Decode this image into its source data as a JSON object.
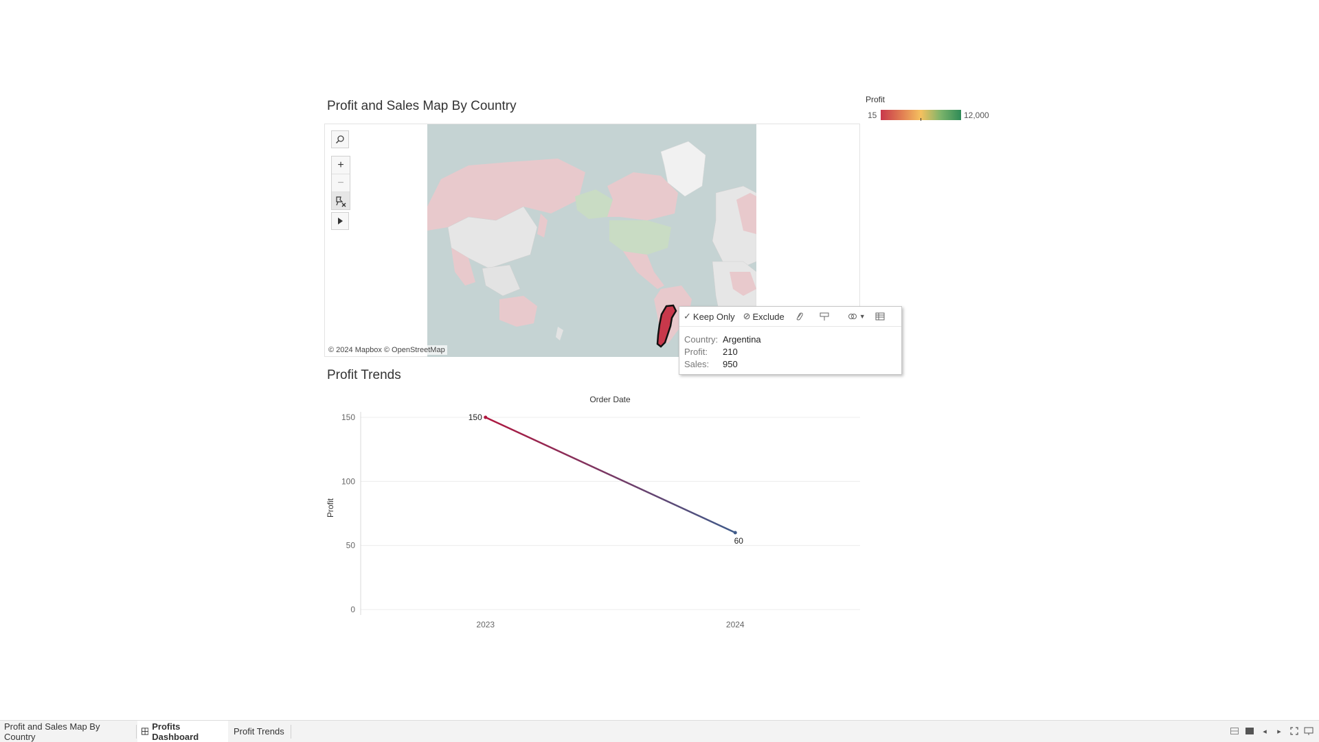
{
  "map_section": {
    "title": "Profit and Sales Map By Country",
    "attribution": "© 2024 Mapbox © OpenStreetMap",
    "tools": {
      "search_icon": "search-icon",
      "zoom_in": "+",
      "zoom_out": "−",
      "reset": "pin-clear-icon",
      "expand": "play-icon"
    }
  },
  "legend": {
    "title": "Profit",
    "min": "15",
    "max": "12,000",
    "colors": [
      "#c8384b",
      "#e07a52",
      "#f5c15f",
      "#7bb36a",
      "#2e8b57"
    ]
  },
  "tooltip": {
    "keep_only": "Keep Only",
    "exclude": "Exclude",
    "rows": [
      {
        "key": "Country:",
        "value": "Argentina"
      },
      {
        "key": "Profit:",
        "value": "210"
      },
      {
        "key": "Sales:",
        "value": "950"
      }
    ]
  },
  "trends_section": {
    "title": "Profit Trends"
  },
  "chart_data": {
    "type": "line",
    "title": "Order Date",
    "xlabel": "",
    "ylabel": "Profit",
    "x": [
      "2023",
      "2024"
    ],
    "series": [
      {
        "values": [
          150,
          60
        ],
        "labels": [
          "150",
          "60"
        ],
        "colors": [
          "#b0173f",
          "#3f5b8a"
        ]
      }
    ],
    "yticks": [
      "0",
      "50",
      "100",
      "150"
    ],
    "ylim": [
      0,
      150
    ],
    "grid": true
  },
  "tabs": [
    {
      "label": "Profit and Sales Map By Country",
      "active": false
    },
    {
      "label": "Profits Dashboard",
      "active": true
    },
    {
      "label": "Profit Trends",
      "active": false
    }
  ],
  "status_bar": {
    "icons": [
      "grid-view-icon",
      "single-view-icon",
      "prev-icon",
      "next-icon",
      "fullscreen-icon",
      "present-icon"
    ]
  }
}
